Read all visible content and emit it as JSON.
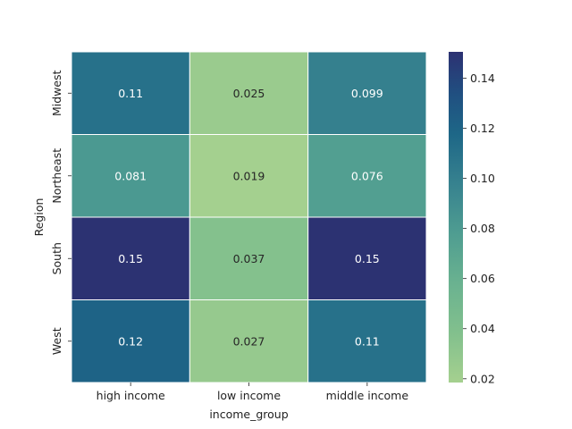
{
  "chart_data": {
    "type": "heatmap",
    "title": "",
    "xlabel": "income_group",
    "ylabel": "Region",
    "x_categories": [
      "high income",
      "low income",
      "middle income"
    ],
    "y_categories": [
      "Midwest",
      "Northeast",
      "South",
      "West"
    ],
    "values": [
      [
        0.11,
        0.025,
        0.099
      ],
      [
        0.081,
        0.019,
        0.076
      ],
      [
        0.15,
        0.037,
        0.15
      ],
      [
        0.12,
        0.027,
        0.11
      ]
    ],
    "cell_labels": [
      [
        "0.11",
        "0.025",
        "0.099"
      ],
      [
        "0.081",
        "0.019",
        "0.076"
      ],
      [
        "0.15",
        "0.037",
        "0.15"
      ],
      [
        "0.12",
        "0.027",
        "0.11"
      ]
    ],
    "colorbar": {
      "range": [
        0.0185,
        0.1505
      ],
      "ticks": [
        0.02,
        0.04,
        0.06,
        0.08,
        0.1,
        0.12,
        0.14
      ],
      "tick_labels": [
        "0.02",
        "0.04",
        "0.06",
        "0.08",
        "0.10",
        "0.12",
        "0.14"
      ],
      "colormap": "crest",
      "low_color": "#a5d08f",
      "high_color": "#2c3172"
    }
  }
}
